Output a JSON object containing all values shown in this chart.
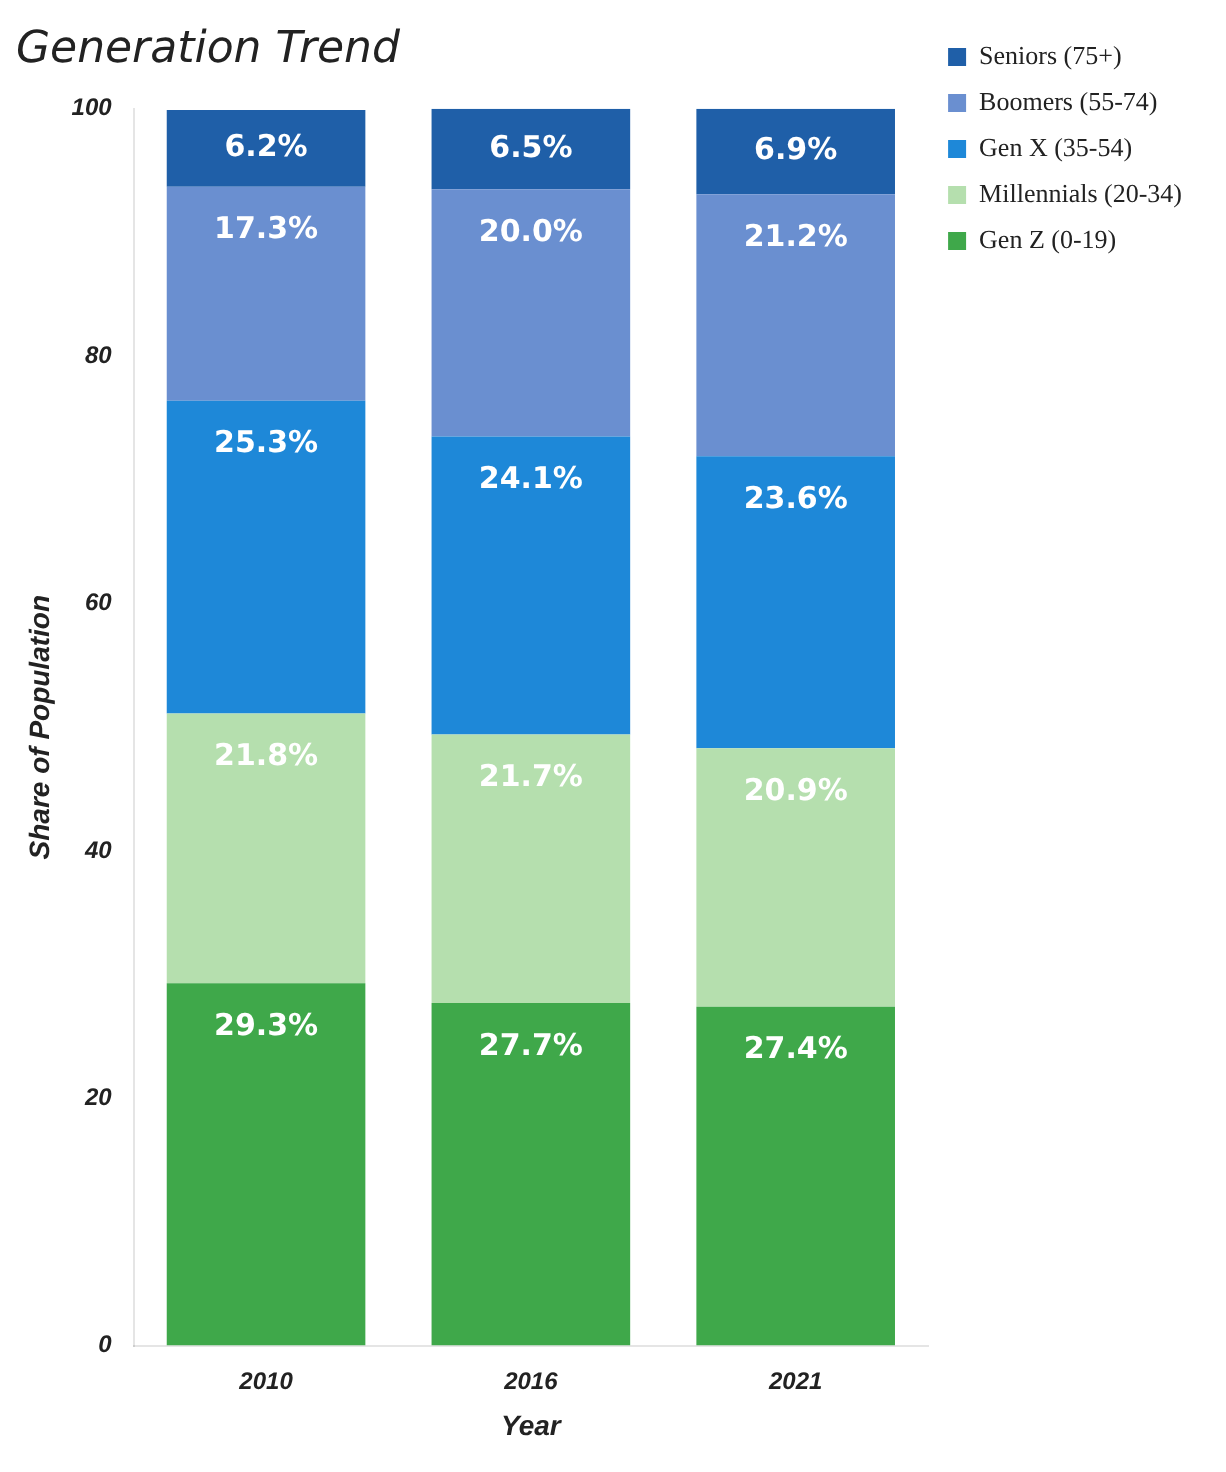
{
  "chart_data": {
    "type": "bar",
    "title": "Generation Trend",
    "xlabel": "Year",
    "ylabel": "Share of Population",
    "categories": [
      "2010",
      "2016",
      "2021"
    ],
    "stacked": true,
    "legend": "right",
    "grid": false,
    "ylim": [
      0,
      100
    ],
    "yticks": [
      0,
      20,
      40,
      60,
      80,
      100
    ],
    "series": [
      {
        "name": "Gen Z (0-19)",
        "color": "#3fa84a",
        "values": [
          29.3,
          27.7,
          27.4
        ],
        "value_labels": [
          "29.3%",
          "27.7%",
          "27.4%"
        ]
      },
      {
        "name": "Millennials (20-34)",
        "color": "#b5dfae",
        "values": [
          21.8,
          21.7,
          20.9
        ],
        "value_labels": [
          "21.8%",
          "21.7%",
          "20.9%"
        ]
      },
      {
        "name": "Gen X (35-54)",
        "color": "#1e88d8",
        "values": [
          25.3,
          24.1,
          23.6
        ],
        "value_labels": [
          "25.3%",
          "24.1%",
          "23.6%"
        ]
      },
      {
        "name": "Boomers (55-74)",
        "color": "#6a8fd0",
        "values": [
          17.3,
          20.0,
          21.2
        ],
        "value_labels": [
          "17.3%",
          "20.0%",
          "21.2%"
        ]
      },
      {
        "name": "Seniors (75+)",
        "color": "#1f5fa8",
        "values": [
          6.2,
          6.5,
          6.9
        ],
        "value_labels": [
          "6.2%",
          "6.5%",
          "6.9%"
        ]
      }
    ]
  }
}
